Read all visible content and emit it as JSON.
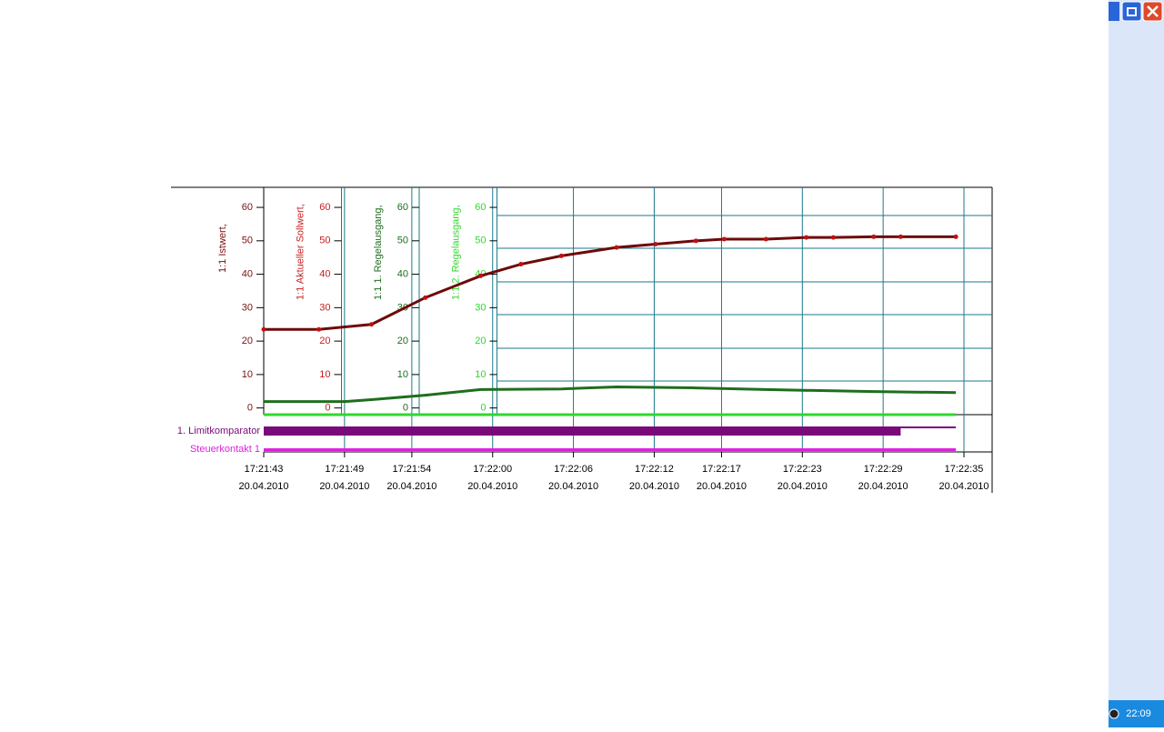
{
  "chart_data": {
    "type": "line",
    "axes": [
      {
        "label": "1:1 Istwert,",
        "color": "#7a1010",
        "ylim": [
          -2,
          66
        ],
        "yticks": [
          0,
          10,
          20,
          30,
          40,
          50,
          60
        ]
      },
      {
        "label": "1:1 Aktueller Sollwert,",
        "color": "#c81e1e",
        "ylim": [
          -2,
          66
        ],
        "yticks": [
          0,
          10,
          20,
          30,
          40,
          50,
          60
        ]
      },
      {
        "label": "1:1 1. Regelausgang,",
        "color": "#1e6e1e",
        "ylim": [
          -2,
          66
        ],
        "yticks": [
          0,
          10,
          20,
          30,
          40,
          50,
          60
        ]
      },
      {
        "label": "1:1 2. Regelausgang,",
        "color": "#2ed82e",
        "ylim": [
          -2,
          66
        ],
        "yticks": [
          0,
          10,
          20,
          30,
          40,
          50,
          60
        ]
      }
    ],
    "xlim": [
      0,
      52
    ],
    "xticks": [
      {
        "value": 0,
        "label": "17:21:43"
      },
      {
        "value": 6,
        "label": "17:21:49"
      },
      {
        "value": 11,
        "label": "17:21:54"
      },
      {
        "value": 17,
        "label": "17:22:00"
      },
      {
        "value": 23,
        "label": "17:22:06"
      },
      {
        "value": 29,
        "label": "17:22:12"
      },
      {
        "value": 34,
        "label": "17:22:17"
      },
      {
        "value": 40,
        "label": "17:22:23"
      },
      {
        "value": 46,
        "label": "17:22:29"
      },
      {
        "value": 52,
        "label": "17:22:35"
      }
    ],
    "x_dates": [
      "20.04.2010",
      "20.04.2010",
      "20.04.2010",
      "20.04.2010",
      "20.04.2010",
      "20.04.2010",
      "20.04.2010",
      "20.04.2010",
      "20.04.2010",
      "20.04.2010"
    ],
    "grid": true,
    "series": [
      {
        "axis": 0,
        "color": "#6e0a0a",
        "markers": true,
        "x": [
          0,
          4.1,
          8,
          12,
          16.1,
          19.1,
          22.1,
          26.2,
          29.1,
          32.1,
          34.2,
          37.3,
          40.3,
          42.3,
          45.3,
          47.3,
          51.4
        ],
        "values": [
          23.5,
          23.5,
          25,
          33,
          39.5,
          43,
          45.5,
          48,
          49,
          50,
          50.5,
          50.5,
          51,
          51,
          51.2,
          51.2,
          51.2
        ]
      },
      {
        "axis": 2,
        "color": "#1e6e1e",
        "markers": false,
        "x": [
          0,
          6,
          8,
          12,
          16.1,
          22.1,
          26.2,
          32.1,
          37.3,
          45.3,
          51.4
        ],
        "values": [
          1.9,
          1.9,
          2.5,
          3.8,
          5.5,
          5.7,
          6.3,
          6,
          5.5,
          4.9,
          4.6
        ]
      },
      {
        "axis": 3,
        "color": "#2ed82e",
        "markers": false,
        "x": [
          0,
          51.4
        ],
        "values": [
          -2,
          -2
        ]
      }
    ],
    "digital": [
      {
        "name": "1. Limitkomparator",
        "color": "#7a0a7a",
        "x": [
          0,
          47.3,
          51.4
        ],
        "values": [
          1,
          0,
          0
        ]
      },
      {
        "name": "Steuerkontakt 1",
        "color": "#e020e0",
        "x": [
          0,
          51.4
        ],
        "values": [
          0,
          0
        ]
      }
    ]
  },
  "taskbar": {
    "clock": "22:09"
  }
}
